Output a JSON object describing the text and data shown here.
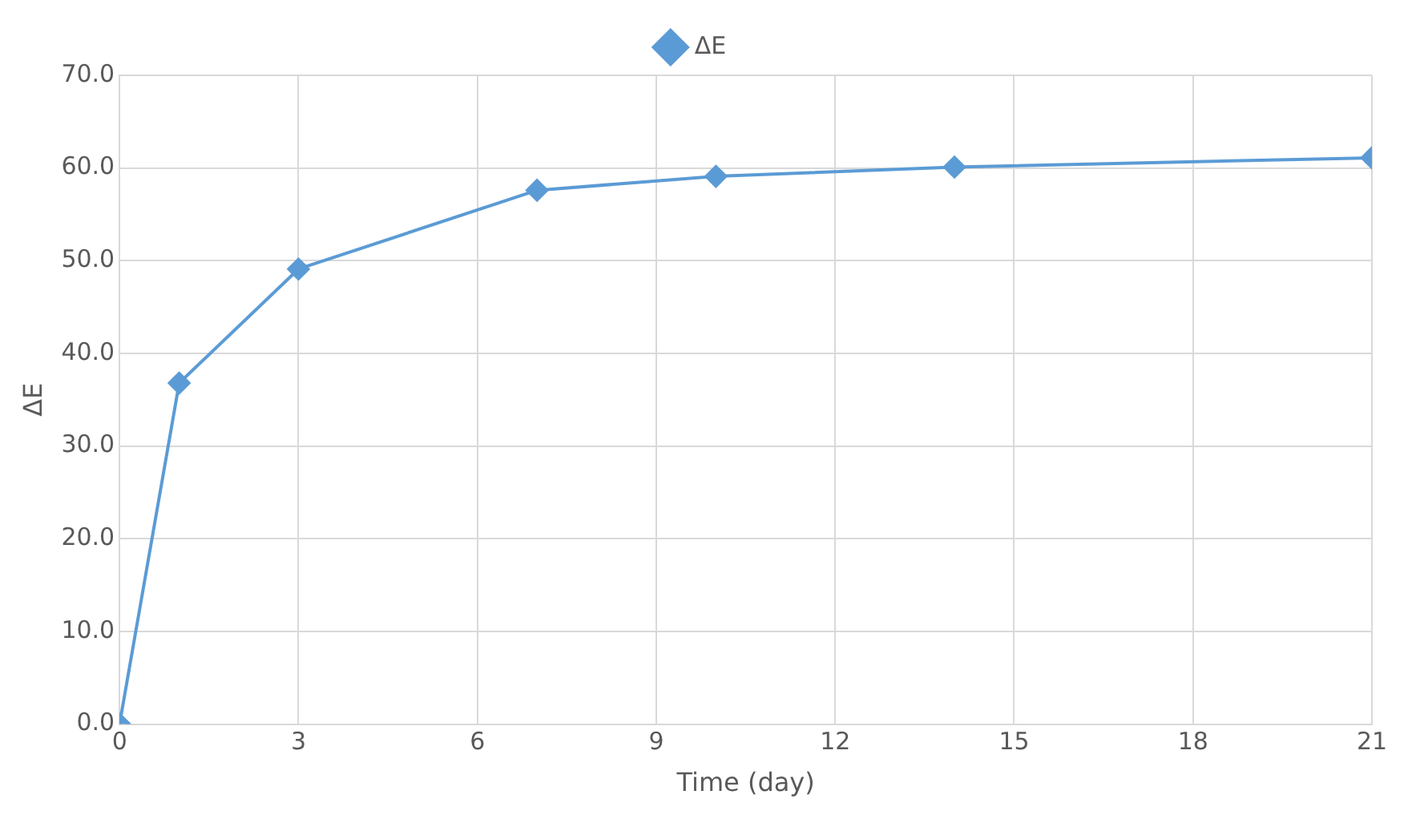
{
  "chart_data": {
    "type": "line",
    "xlabel": "Time (day)",
    "ylabel": "ΔE",
    "x": [
      0,
      1,
      3,
      7,
      10,
      14,
      21
    ],
    "series": [
      {
        "name": "ΔE",
        "color": "#5b9bd5",
        "values": [
          0,
          36.8,
          49.1,
          57.6,
          59.1,
          60.1,
          61.1
        ]
      }
    ],
    "xlim": [
      0,
      21
    ],
    "xticks": [
      0,
      3,
      6,
      9,
      12,
      15,
      18,
      21
    ],
    "ylim": [
      0,
      70
    ],
    "yticks": [
      {
        "value": 0,
        "label": "0.0"
      },
      {
        "value": 10,
        "label": "10.0"
      },
      {
        "value": 20,
        "label": "20.0"
      },
      {
        "value": 30,
        "label": "30.0"
      },
      {
        "value": 40,
        "label": "40.0"
      },
      {
        "value": 50,
        "label": "50.0"
      },
      {
        "value": 60,
        "label": "60.0"
      },
      {
        "value": 70,
        "label": "70.0"
      }
    ],
    "grid": true,
    "legend": "top",
    "marker": "diamond",
    "line_style": "solid"
  }
}
